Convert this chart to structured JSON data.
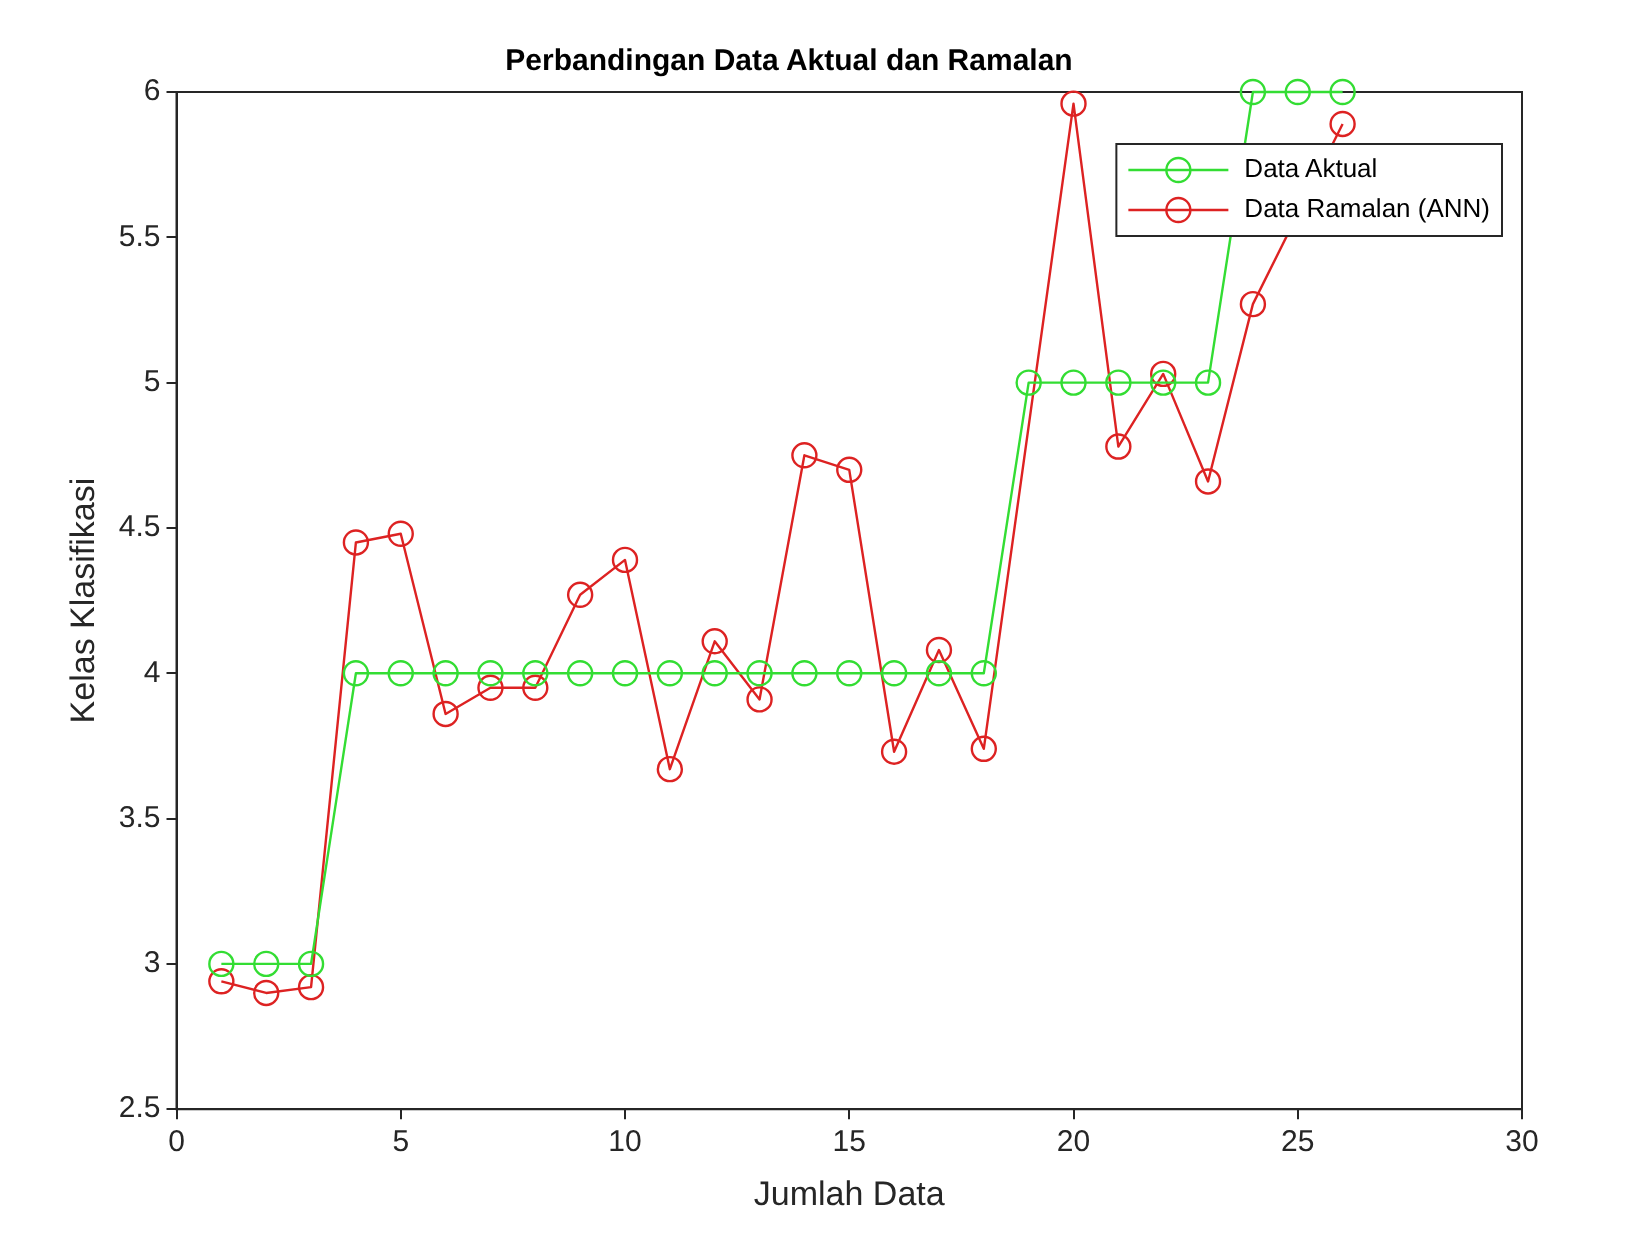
{
  "chart_data": {
    "type": "line",
    "title": "Perbandingan Data Aktual dan Ramalan",
    "xlabel": "Jumlah Data",
    "ylabel": "Kelas Klasifikasi",
    "x": [
      1,
      2,
      3,
      4,
      5,
      6,
      7,
      8,
      9,
      10,
      11,
      12,
      13,
      14,
      15,
      16,
      17,
      18,
      19,
      20,
      21,
      22,
      23,
      24,
      25,
      26
    ],
    "series": [
      {
        "name": "Data Aktual",
        "color": "#33dd33",
        "values": [
          3,
          3,
          3,
          4,
          4,
          4,
          4,
          4,
          4,
          4,
          4,
          4,
          4,
          4,
          4,
          4,
          4,
          4,
          5,
          5,
          5,
          5,
          5,
          6,
          6,
          6
        ]
      },
      {
        "name": "Data Ramalan (ANN)",
        "color": "#dd2222",
        "values": [
          2.94,
          2.9,
          2.92,
          4.45,
          4.48,
          3.86,
          3.95,
          3.95,
          4.27,
          4.39,
          3.67,
          4.11,
          3.91,
          4.75,
          4.7,
          3.73,
          4.08,
          3.74,
          null,
          5.96,
          4.78,
          5.03,
          4.66,
          5.27,
          null,
          5.89
        ]
      }
    ],
    "xlim": [
      0,
      30
    ],
    "xticks": [
      0,
      5,
      10,
      15,
      20,
      25,
      30
    ],
    "ylim": [
      2.5,
      6
    ],
    "yticks": [
      2.5,
      3,
      3.5,
      4,
      4.5,
      5,
      5.5,
      6
    ],
    "grid": false,
    "legend": "top right",
    "marker": "circle",
    "line_style": "solid"
  }
}
